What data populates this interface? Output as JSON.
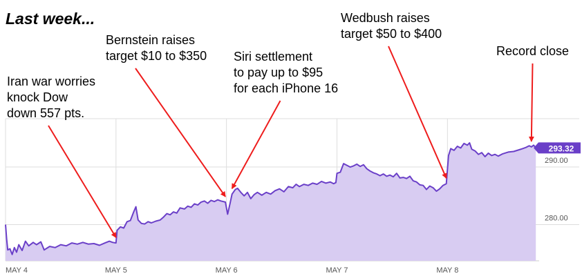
{
  "title": "Last week...",
  "chart_data": {
    "type": "area",
    "title": "Last week...",
    "xlabel": "",
    "ylabel": "",
    "x_range": [
      0,
      4.83
    ],
    "ylim": [
      273.7,
      298.4
    ],
    "ticks_x": [
      {
        "x": 0,
        "label": "MAY 4"
      },
      {
        "x": 1,
        "label": "MAY 5"
      },
      {
        "x": 2,
        "label": "MAY 6"
      },
      {
        "x": 3,
        "label": "MAY 7"
      },
      {
        "x": 4,
        "label": "MAY 8"
      }
    ],
    "ticks_y": [
      {
        "y": 280,
        "label": "280.00"
      },
      {
        "y": 290,
        "label": "290.00"
      }
    ],
    "last_value": 293.32,
    "last_value_label": "293.32",
    "grid": true,
    "colors": {
      "line": "#6a3fc8",
      "fill": "#d8ccf2",
      "badge": "#6a3fc8",
      "arrow": "#ee1c1c",
      "grid": "#dddddd",
      "tick_text": "#555555"
    },
    "series": [
      {
        "values": [
          [
            0.0,
            280.0
          ],
          [
            0.01,
            277.5
          ],
          [
            0.02,
            275.6
          ],
          [
            0.04,
            275.8
          ],
          [
            0.06,
            274.8
          ],
          [
            0.08,
            276.0
          ],
          [
            0.1,
            275.2
          ],
          [
            0.12,
            276.5
          ],
          [
            0.15,
            275.5
          ],
          [
            0.18,
            277.1
          ],
          [
            0.21,
            276.3
          ],
          [
            0.25,
            276.9
          ],
          [
            0.28,
            276.5
          ],
          [
            0.32,
            277.0
          ],
          [
            0.35,
            275.6
          ],
          [
            0.4,
            276.2
          ],
          [
            0.45,
            276.0
          ],
          [
            0.5,
            276.5
          ],
          [
            0.55,
            276.3
          ],
          [
            0.6,
            276.8
          ],
          [
            0.65,
            276.6
          ],
          [
            0.7,
            276.9
          ],
          [
            0.75,
            276.6
          ],
          [
            0.8,
            276.7
          ],
          [
            0.85,
            276.4
          ],
          [
            0.9,
            276.8
          ],
          [
            0.94,
            277.1
          ],
          [
            0.97,
            276.9
          ],
          [
            1.0,
            276.8
          ],
          [
            1.01,
            279.0
          ],
          [
            1.04,
            279.6
          ],
          [
            1.07,
            279.4
          ],
          [
            1.1,
            280.5
          ],
          [
            1.13,
            280.7
          ],
          [
            1.16,
            282.2
          ],
          [
            1.18,
            283.1
          ],
          [
            1.2,
            280.8
          ],
          [
            1.23,
            280.2
          ],
          [
            1.26,
            280.1
          ],
          [
            1.29,
            280.5
          ],
          [
            1.32,
            280.3
          ],
          [
            1.36,
            280.6
          ],
          [
            1.4,
            280.8
          ],
          [
            1.43,
            281.3
          ],
          [
            1.46,
            281.9
          ],
          [
            1.49,
            281.7
          ],
          [
            1.52,
            282.2
          ],
          [
            1.55,
            282.0
          ],
          [
            1.58,
            282.9
          ],
          [
            1.62,
            282.7
          ],
          [
            1.65,
            283.2
          ],
          [
            1.68,
            283.0
          ],
          [
            1.71,
            283.6
          ],
          [
            1.74,
            283.4
          ],
          [
            1.77,
            283.9
          ],
          [
            1.8,
            284.1
          ],
          [
            1.83,
            283.7
          ],
          [
            1.86,
            284.2
          ],
          [
            1.89,
            284.0
          ],
          [
            1.92,
            284.3
          ],
          [
            1.95,
            284.1
          ],
          [
            1.99,
            283.9
          ],
          [
            2.01,
            281.8
          ],
          [
            2.03,
            283.5
          ],
          [
            2.05,
            285.3
          ],
          [
            2.08,
            286.1
          ],
          [
            2.1,
            286.3
          ],
          [
            2.13,
            285.6
          ],
          [
            2.16,
            285.0
          ],
          [
            2.19,
            285.6
          ],
          [
            2.22,
            284.5
          ],
          [
            2.25,
            285.2
          ],
          [
            2.28,
            285.6
          ],
          [
            2.32,
            285.1
          ],
          [
            2.36,
            285.6
          ],
          [
            2.4,
            285.3
          ],
          [
            2.44,
            285.9
          ],
          [
            2.48,
            286.2
          ],
          [
            2.52,
            285.7
          ],
          [
            2.56,
            286.6
          ],
          [
            2.6,
            286.4
          ],
          [
            2.63,
            287.0
          ],
          [
            2.66,
            286.6
          ],
          [
            2.7,
            287.0
          ],
          [
            2.74,
            286.8
          ],
          [
            2.78,
            287.2
          ],
          [
            2.82,
            287.0
          ],
          [
            2.86,
            287.5
          ],
          [
            2.9,
            287.2
          ],
          [
            2.94,
            287.4
          ],
          [
            2.97,
            287.1
          ],
          [
            2.99,
            287.3
          ],
          [
            3.0,
            288.9
          ],
          [
            3.03,
            289.1
          ],
          [
            3.06,
            290.6
          ],
          [
            3.09,
            290.3
          ],
          [
            3.12,
            290.0
          ],
          [
            3.15,
            290.2
          ],
          [
            3.18,
            290.5
          ],
          [
            3.21,
            290.1
          ],
          [
            3.24,
            290.4
          ],
          [
            3.27,
            289.7
          ],
          [
            3.3,
            289.3
          ],
          [
            3.33,
            289.0
          ],
          [
            3.36,
            288.8
          ],
          [
            3.39,
            288.5
          ],
          [
            3.42,
            288.8
          ],
          [
            3.45,
            288.4
          ],
          [
            3.48,
            288.6
          ],
          [
            3.51,
            288.3
          ],
          [
            3.54,
            288.9
          ],
          [
            3.57,
            288.1
          ],
          [
            3.6,
            288.2
          ],
          [
            3.63,
            288.0
          ],
          [
            3.66,
            288.4
          ],
          [
            3.69,
            287.6
          ],
          [
            3.72,
            287.4
          ],
          [
            3.75,
            286.9
          ],
          [
            3.78,
            286.8
          ],
          [
            3.81,
            286.1
          ],
          [
            3.84,
            286.7
          ],
          [
            3.87,
            286.4
          ],
          [
            3.9,
            285.8
          ],
          [
            3.93,
            286.2
          ],
          [
            3.96,
            286.8
          ],
          [
            3.99,
            287.1
          ],
          [
            4.01,
            292.0
          ],
          [
            4.03,
            293.2
          ],
          [
            4.06,
            292.9
          ],
          [
            4.09,
            293.6
          ],
          [
            4.12,
            293.3
          ],
          [
            4.15,
            294.1
          ],
          [
            4.18,
            293.8
          ],
          [
            4.2,
            294.2
          ],
          [
            4.22,
            293.1
          ],
          [
            4.25,
            292.8
          ],
          [
            4.28,
            292.2
          ],
          [
            4.31,
            292.5
          ],
          [
            4.34,
            291.8
          ],
          [
            4.37,
            292.4
          ],
          [
            4.4,
            292.0
          ],
          [
            4.43,
            292.2
          ],
          [
            4.46,
            291.9
          ],
          [
            4.5,
            292.3
          ],
          [
            4.55,
            292.6
          ],
          [
            4.6,
            292.7
          ],
          [
            4.65,
            293.0
          ],
          [
            4.68,
            293.2
          ],
          [
            4.71,
            293.4
          ],
          [
            4.74,
            293.7
          ],
          [
            4.76,
            293.5
          ],
          [
            4.78,
            293.8
          ],
          [
            4.8,
            293.32
          ]
        ]
      }
    ],
    "annotations": [
      {
        "text": "Iran war worries\nknock Dow\ndown 557 pts.",
        "x": 1.0,
        "y": 276.8
      },
      {
        "text": "Bernstein raises\ntarget $10 to $350",
        "x": 1.99,
        "y": 283.9
      },
      {
        "text": "Siri settlement\nto pay up to $95\nfor each iPhone 16",
        "x": 2.05,
        "y": 285.3
      },
      {
        "text": "Wedbush raises\ntarget $50 to $400",
        "x": 3.99,
        "y": 287.1
      },
      {
        "text": "Record close",
        "x": 4.76,
        "y": 293.5
      }
    ]
  }
}
